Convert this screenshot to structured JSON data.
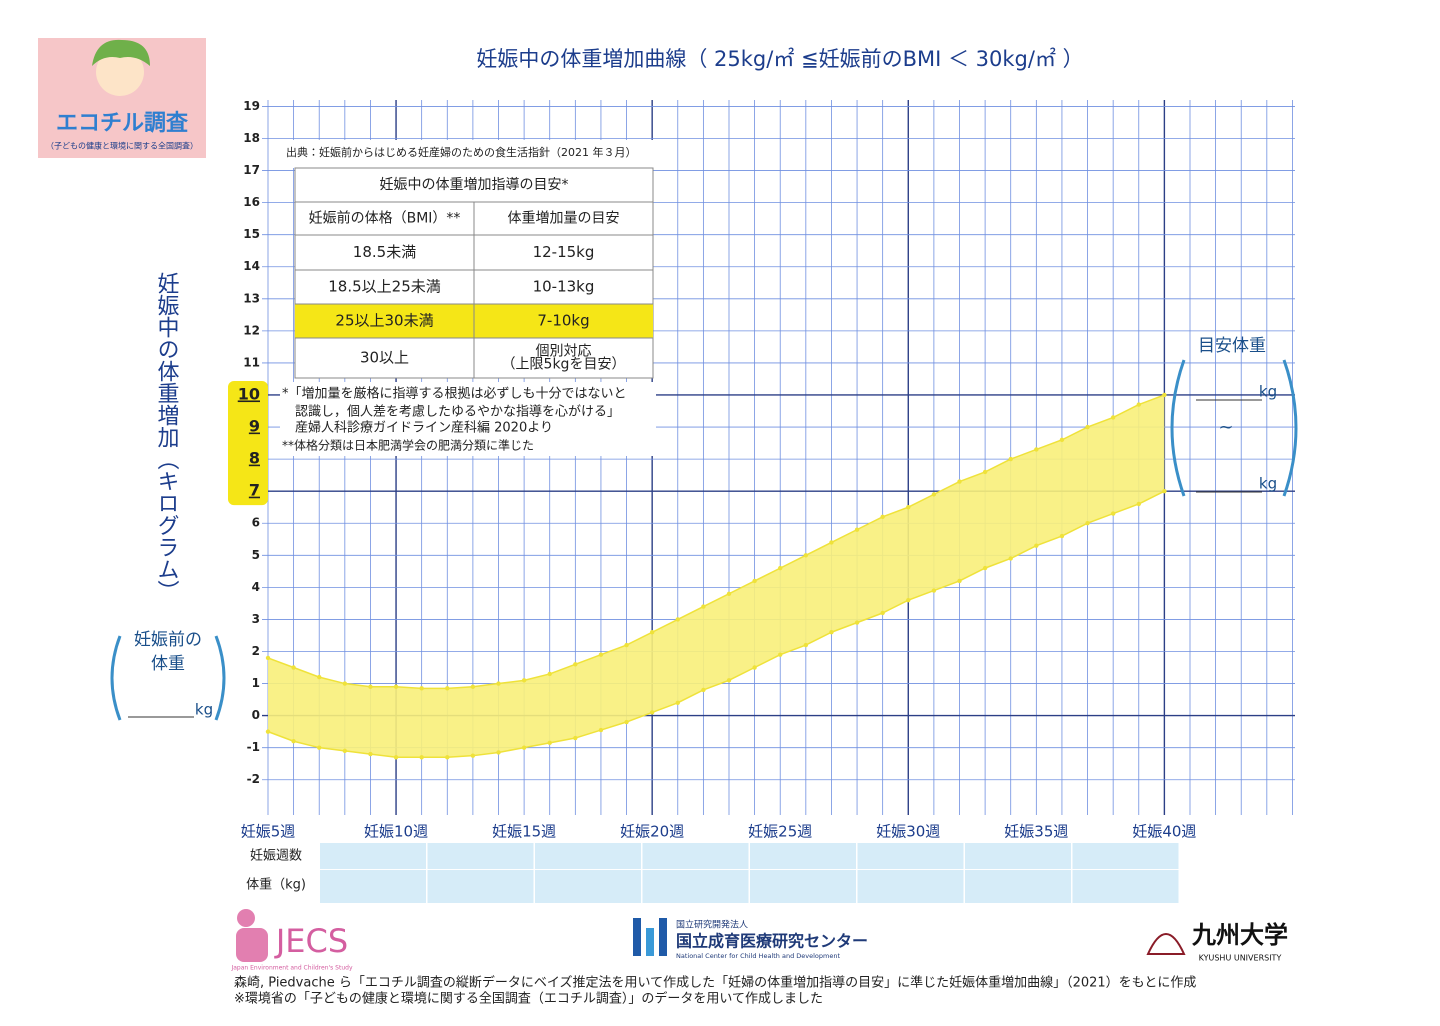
{
  "logo": {
    "title": "エコチル調査",
    "subtitle": "（子どもの健康と環境に関する全国調査）"
  },
  "chart_data": {
    "type": "band",
    "title": "妊娠中の体重増加曲線（ 25kg/㎡ ≦妊娠前のBMI ＜ 30kg/㎡ ）",
    "y_label": "妊娠中の体重増加（キログラム）",
    "x": [
      5,
      6,
      7,
      8,
      9,
      10,
      11,
      12,
      13,
      14,
      15,
      16,
      17,
      18,
      19,
      20,
      21,
      22,
      23,
      24,
      25,
      26,
      27,
      28,
      29,
      30,
      31,
      32,
      33,
      34,
      35,
      36,
      37,
      38,
      39,
      40
    ],
    "series": [
      {
        "values": [
          1.8,
          1.5,
          1.2,
          1.0,
          0.9,
          0.9,
          0.85,
          0.85,
          0.9,
          1.0,
          1.1,
          1.3,
          1.6,
          1.9,
          2.2,
          2.6,
          3.0,
          3.4,
          3.8,
          4.2,
          4.6,
          5.0,
          5.4,
          5.8,
          6.2,
          6.5,
          6.9,
          7.3,
          7.6,
          8.0,
          8.3,
          8.6,
          9.0,
          9.3,
          9.7,
          10.0
        ]
      },
      {
        "values": [
          -0.5,
          -0.8,
          -1.0,
          -1.1,
          -1.2,
          -1.3,
          -1.3,
          -1.3,
          -1.25,
          -1.15,
          -1.0,
          -0.85,
          -0.7,
          -0.45,
          -0.2,
          0.1,
          0.4,
          0.8,
          1.1,
          1.5,
          1.9,
          2.2,
          2.6,
          2.9,
          3.2,
          3.6,
          3.9,
          4.2,
          4.6,
          4.9,
          5.3,
          5.6,
          6.0,
          6.3,
          6.6,
          7.0
        ]
      }
    ],
    "color": "#f8f07a",
    "point_color": "#efe23a",
    "xlim": [
      5,
      45.1
    ],
    "ylim": [
      -3.1,
      19.2
    ],
    "xticks": [
      {
        "value": 5,
        "label": "妊娠5週"
      },
      {
        "value": 10,
        "label": "妊娠10週"
      },
      {
        "value": 15,
        "label": "妊娠15週"
      },
      {
        "value": 20,
        "label": "妊娠20週"
      },
      {
        "value": 25,
        "label": "妊娠25週"
      },
      {
        "value": 30,
        "label": "妊娠30週"
      },
      {
        "value": 35,
        "label": "妊娠35週"
      },
      {
        "value": 40,
        "label": "妊娠40週"
      }
    ],
    "xgrid": [
      5,
      6,
      7,
      8,
      9,
      10,
      11,
      12,
      13,
      14,
      15,
      16,
      17,
      18,
      19,
      20,
      21,
      22,
      23,
      24,
      25,
      26,
      27,
      28,
      29,
      30,
      31,
      32,
      33,
      34,
      35,
      36,
      37,
      38,
      39,
      40,
      41,
      42,
      43,
      44,
      45
    ],
    "yticks": [
      -2,
      -1,
      0,
      1,
      2,
      3,
      4,
      5,
      6,
      7,
      8,
      9,
      10,
      11,
      12,
      13,
      14,
      15,
      16,
      17,
      18,
      19
    ],
    "major_xgrid": [
      10,
      20,
      30,
      40
    ],
    "major_ygrid": [
      0,
      7,
      10
    ],
    "highlight_range": [
      7,
      10
    ],
    "grid": true
  },
  "pre_weight": {
    "label_lines": [
      "妊娠前の",
      "体重"
    ],
    "unit": "kg"
  },
  "target": {
    "label": "目安体重",
    "unit_upper": "kg",
    "separator": "~",
    "unit_lower": "kg"
  },
  "guide_table": {
    "source": "出典：妊娠前からはじめる妊産婦のための食生活指針（2021 年３月）",
    "title": "妊娠中の体重増加指導の目安*",
    "header": [
      "妊娠前の体格（BMI）**",
      "体重増加量の目安"
    ],
    "rows": [
      [
        "18.5未満",
        "12-15kg"
      ],
      [
        "18.5以上25未満",
        "10-13kg"
      ],
      [
        "25以上30未満",
        "7-10kg"
      ],
      [
        "30以上",
        [
          "個別対応",
          "（上限5kgを目安）"
        ]
      ]
    ],
    "highlight_row": 2,
    "notes": [
      "*「増加量を厳格に指導する根拠は必ずしも十分ではないと",
      "認識し，個人差を考慮したゆるやかな指導を心がける」",
      "産婦人科診療ガイドライン産科編 2020より",
      "**体格分類は日本肥満学会の肥満分類に準じた"
    ]
  },
  "record_table": {
    "rows": [
      "妊娠週数",
      "体重（kg)"
    ]
  },
  "logos": {
    "jecs": {
      "name": "JECS",
      "sub": "Japan Environment and Children's Study"
    },
    "ncchd": {
      "prefix": "国立研究開発法人",
      "name": "国立成育医療研究センター",
      "en": "National Center for Child Health and Development"
    },
    "kyushu": {
      "name": "九州大学",
      "en": "KYUSHU UNIVERSITY"
    }
  },
  "footer": [
    "森崎, Piedvache ら「エコチル調査の縦断データにベイズ推定法を用いて作成した「妊婦の体重増加指導の目安」に準じた妊娠体重増加曲線」（2021）をもとに作成",
    "※環境省の「子どもの健康と環境に関する全国調査（エコチル調査）」のデータを用いて作成しました"
  ]
}
